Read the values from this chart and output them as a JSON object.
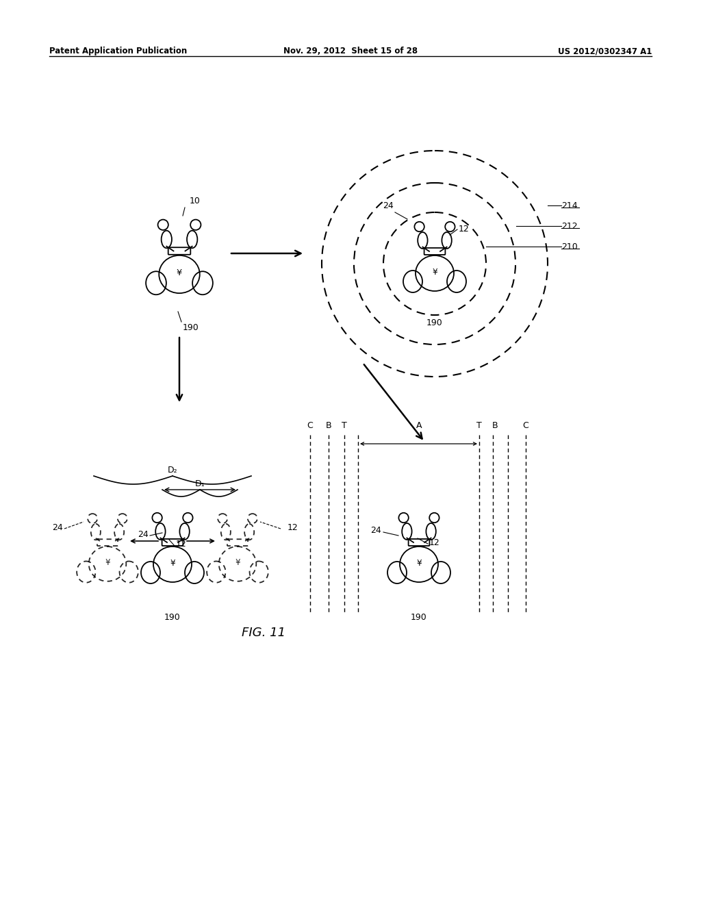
{
  "bg_color": "#ffffff",
  "header_left": "Patent Application Publication",
  "header_center": "Nov. 29, 2012  Sheet 15 of 28",
  "header_right": "US 2012/0302347 A1",
  "figure_label": "FIG. 11",
  "fig_w": 1024,
  "fig_h": 1320
}
